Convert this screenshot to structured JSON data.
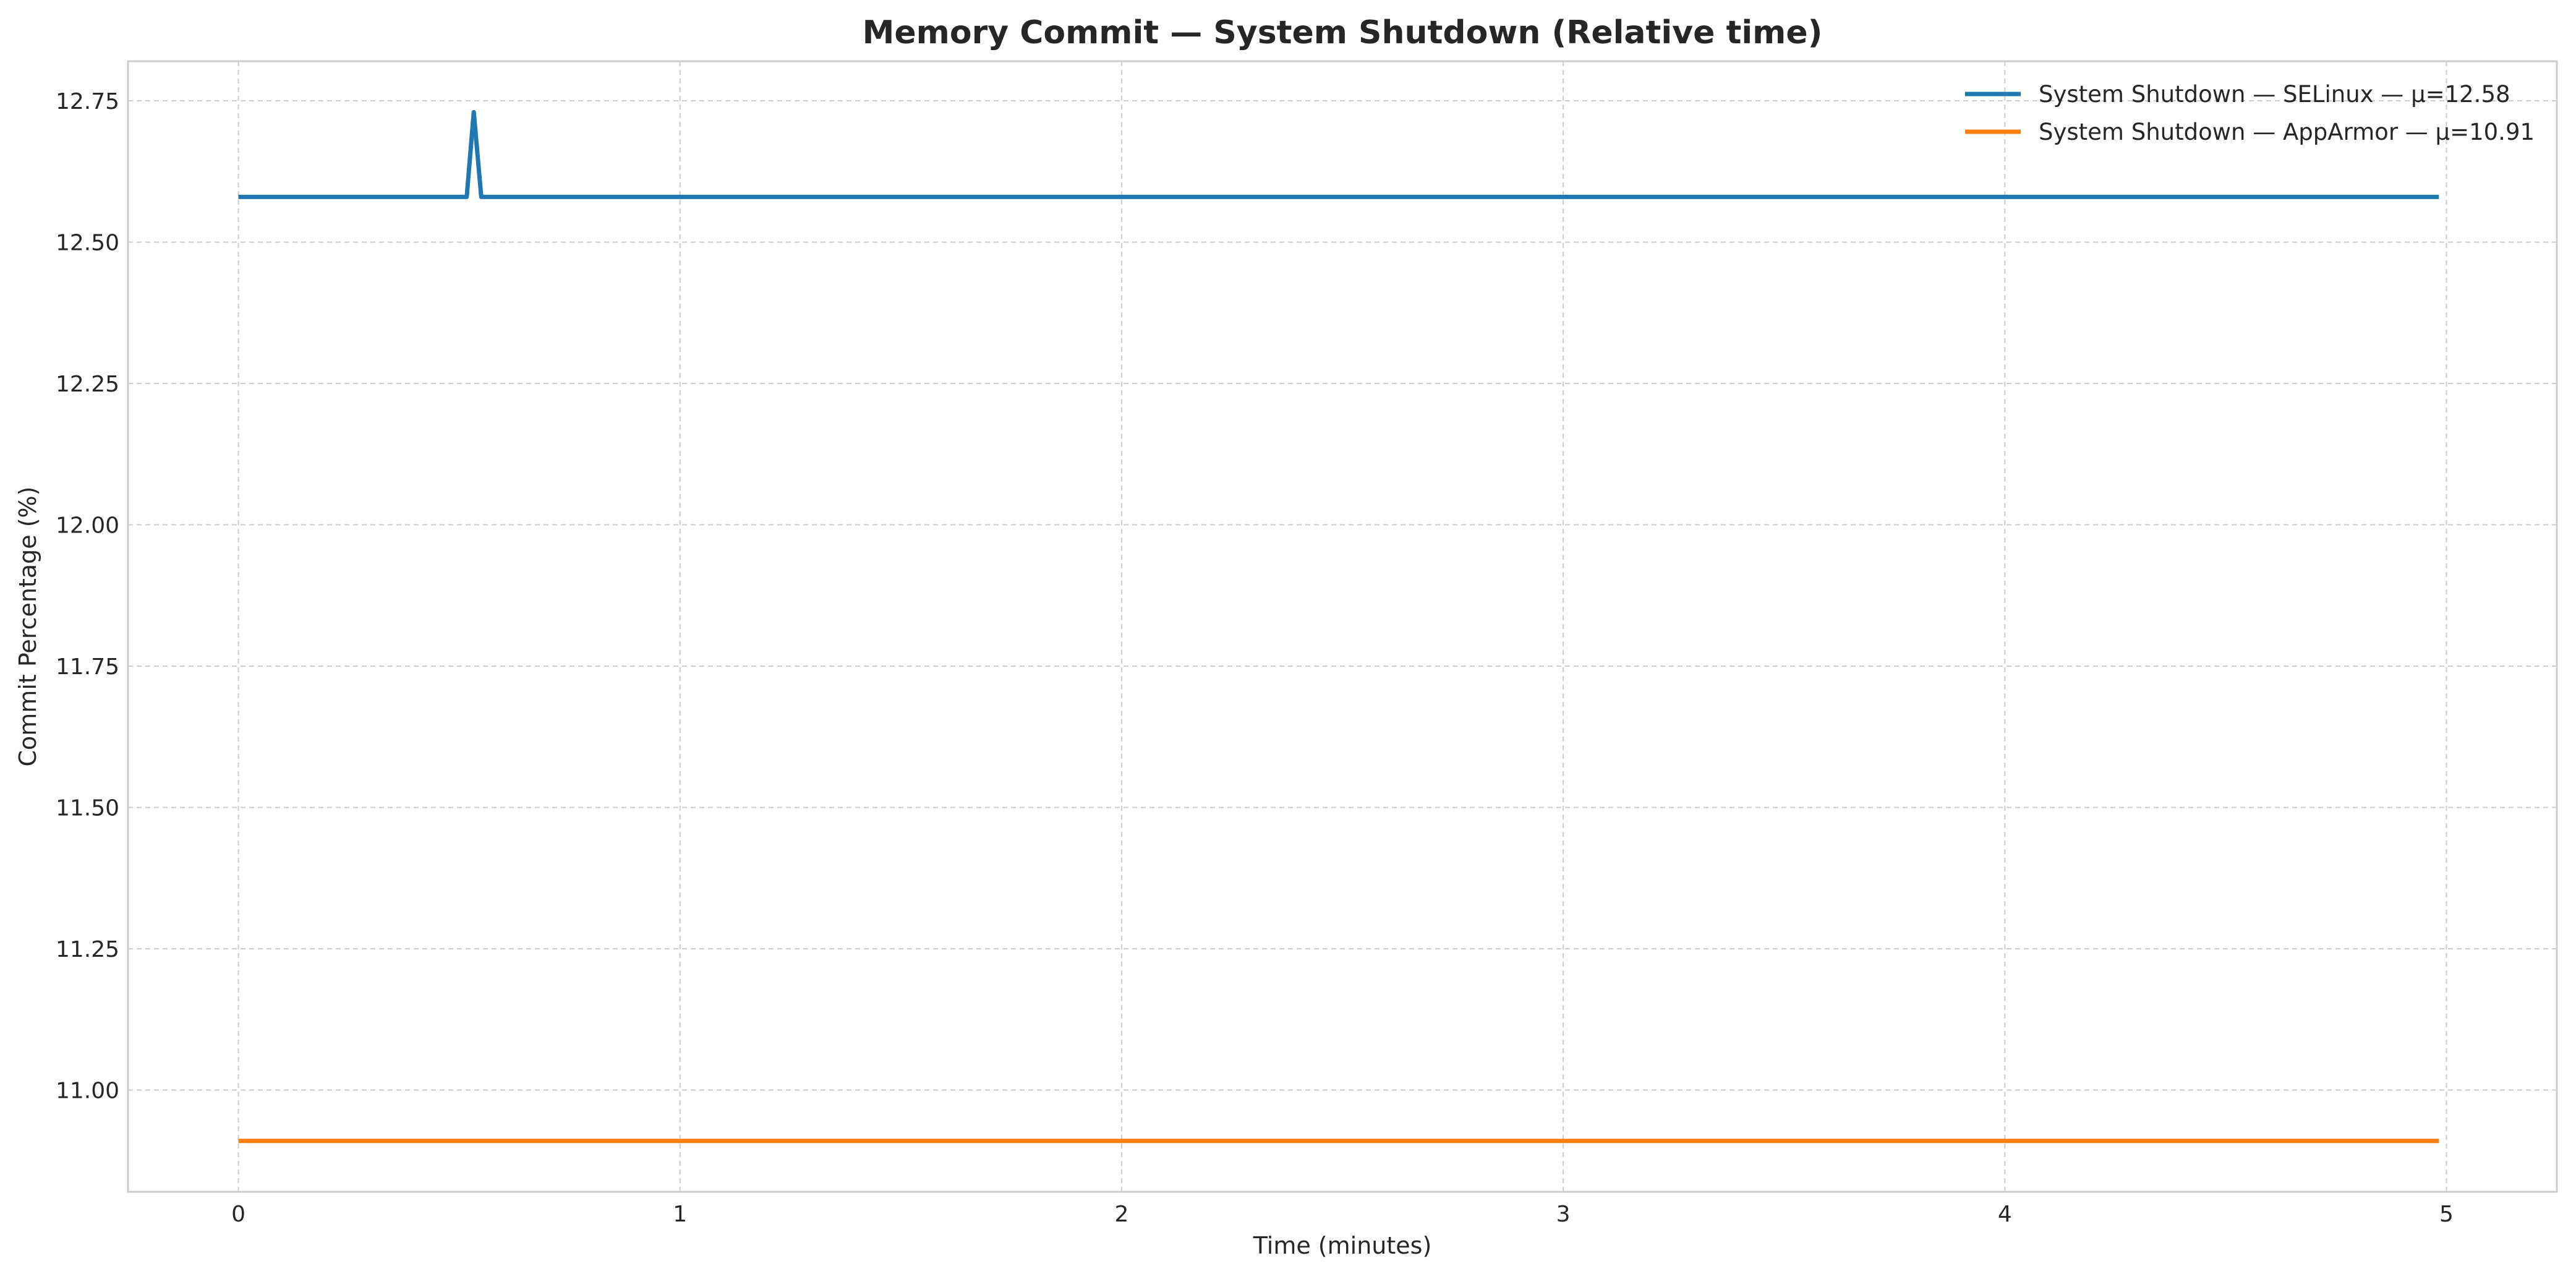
{
  "chart_data": {
    "type": "line",
    "title": "Memory Commit — System Shutdown (Relative time)",
    "xlabel": "Time (minutes)",
    "ylabel": "Commit Percentage (%)",
    "xlim": [
      -0.25,
      5.25
    ],
    "ylim": [
      10.82,
      12.82
    ],
    "x_ticks": [
      0,
      1,
      2,
      3,
      4,
      5
    ],
    "x_tick_labels": [
      "0",
      "1",
      "2",
      "3",
      "4",
      "5"
    ],
    "y_ticks": [
      11.0,
      11.25,
      11.5,
      11.75,
      12.0,
      12.25,
      12.5,
      12.75
    ],
    "y_tick_labels": [
      "11.00",
      "11.25",
      "11.50",
      "11.75",
      "12.00",
      "12.25",
      "12.50",
      "12.75"
    ],
    "grid": true,
    "legend_position": "top-right",
    "series": [
      {
        "name": "System Shutdown — SELinux — μ=12.58",
        "color": "#1f77b4",
        "x": [
          0,
          0.517,
          0.533,
          0.55,
          4.983
        ],
        "y": [
          12.58,
          12.58,
          12.73,
          12.58,
          12.58
        ]
      },
      {
        "name": "System Shutdown — AppArmor — μ=10.91",
        "color": "#ff7f0e",
        "x": [
          0,
          4.983
        ],
        "y": [
          10.91,
          10.91
        ]
      }
    ]
  }
}
